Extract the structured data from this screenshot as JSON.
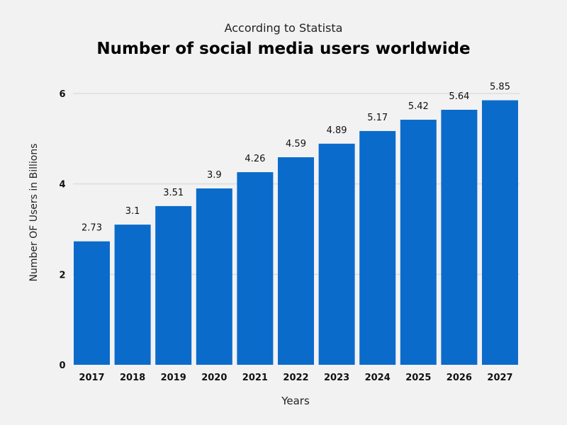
{
  "chart_data": {
    "type": "bar",
    "subtitle": "According to Statista",
    "title": "Number of social media users worldwide",
    "xlabel": "Years",
    "ylabel": "Number OF Users in Billions",
    "categories": [
      "2017",
      "2018",
      "2019",
      "2020",
      "2021",
      "2022",
      "2023",
      "2024",
      "2025",
      "2026",
      "2027"
    ],
    "values": [
      2.73,
      3.1,
      3.51,
      3.9,
      4.26,
      4.59,
      4.89,
      5.17,
      5.42,
      5.64,
      5.85
    ],
    "data_labels": [
      "2.73",
      "3.1",
      "3.51",
      "3.9",
      "4.26",
      "4.59",
      "4.89",
      "5.17",
      "5.42",
      "5.64",
      "5.85"
    ],
    "yticks": [
      "0",
      "2",
      "4",
      "6"
    ],
    "ylim": [
      0,
      6
    ],
    "grid": true,
    "bar_color": "#0b6bcb",
    "background": "#f2f2f2"
  }
}
